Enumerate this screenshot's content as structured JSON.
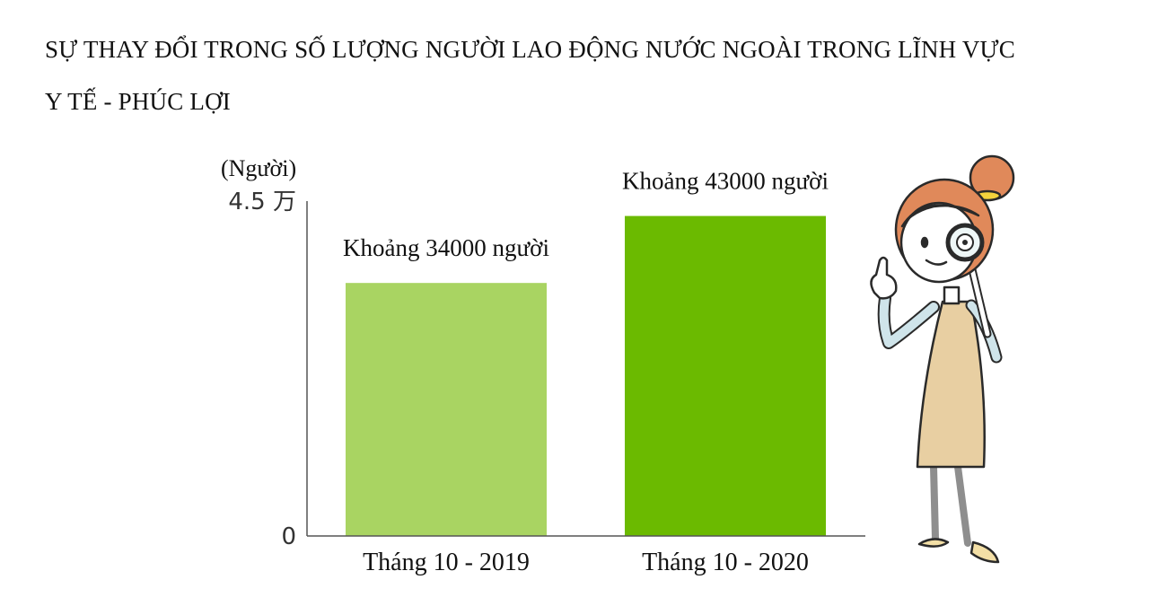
{
  "title": {
    "line1": "SỰ THAY ĐỔI TRONG SỐ LƯỢNG NGƯỜI LAO ĐỘNG NƯỚC NGOÀI TRONG LĨNH VỰC",
    "line2": "Y TẾ - PHÚC LỢI"
  },
  "colors": {
    "bar_2019": "#a9d462",
    "bar_2020": "#6bba00",
    "axis": "#555555"
  },
  "illustration": {
    "name": "woman-with-magnifying-glass-illustration"
  },
  "chart_data": {
    "type": "bar",
    "title": "SỰ THAY ĐỔI TRONG SỐ LƯỢNG NGƯỜI LAO ĐỘNG NƯỚC NGOÀI TRONG LĨNH VỰC Y TẾ - PHÚC LỢI",
    "unit_label": "(Người)",
    "y_ticks": [
      {
        "value": 0,
        "label": "0"
      },
      {
        "value": 45000,
        "label": "4.5 万"
      }
    ],
    "ylim": [
      0,
      45000
    ],
    "categories": [
      "Tháng 10 - 2019",
      "Tháng 10 - 2020"
    ],
    "values": [
      34000,
      43000
    ],
    "data_labels": [
      "Khoảng 34000 người",
      "Khoảng 43000 người"
    ]
  }
}
